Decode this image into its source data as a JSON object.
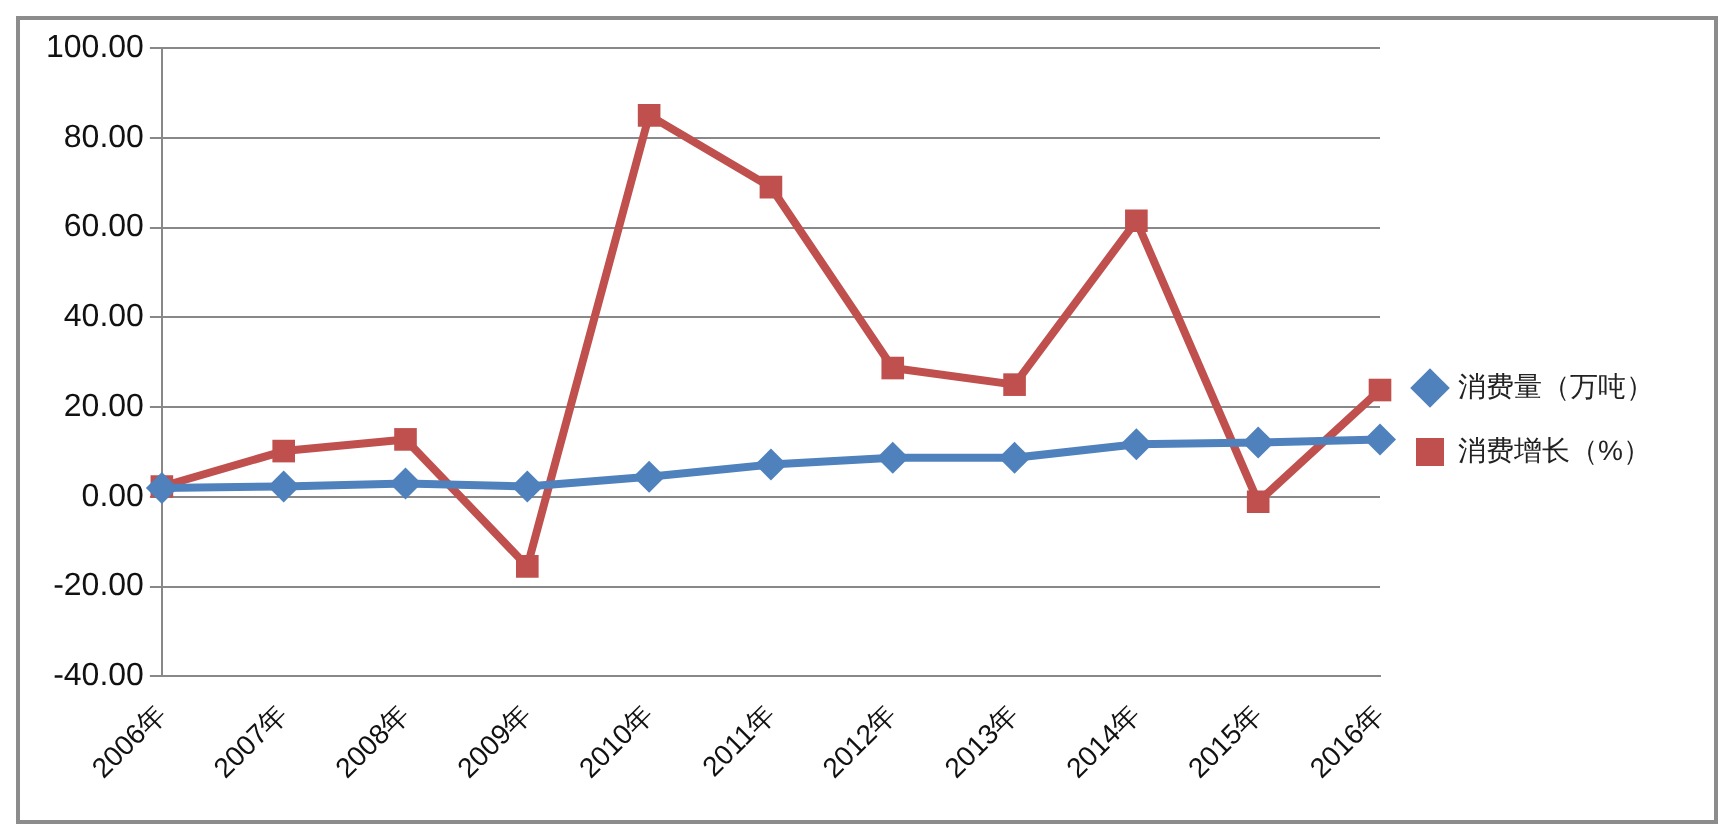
{
  "chart_data": {
    "type": "line",
    "categories": [
      "2006年",
      "2007年",
      "2008年",
      "2009年",
      "2010年",
      "2011年",
      "2012年",
      "2013年",
      "2014年",
      "2015年",
      "2016年"
    ],
    "series": [
      {
        "name": "消费增长（%）",
        "color": "#c0504d",
        "marker": "square",
        "values": [
          2.3,
          10.2,
          12.8,
          -15.5,
          85,
          69,
          28.7,
          25,
          61.5,
          -1.1,
          23.8
        ]
      },
      {
        "name": "消费量（万吨）",
        "color": "#4f81bd",
        "marker": "diamond",
        "values": [
          2.0,
          2.3,
          3.0,
          2.3,
          4.5,
          7.2,
          8.7,
          8.7,
          11.7,
          12.1,
          12.8
        ]
      }
    ],
    "ylim": [
      -40,
      100
    ],
    "yticks": [
      {
        "value": -40,
        "label": "-40.00"
      },
      {
        "value": -20,
        "label": "-20.00"
      },
      {
        "value": 0,
        "label": "0.00"
      },
      {
        "value": 20,
        "label": "20.00"
      },
      {
        "value": 40,
        "label": "40.00"
      },
      {
        "value": 60,
        "label": "60.00"
      },
      {
        "value": 80,
        "label": "80.00"
      },
      {
        "value": 100,
        "label": "100.00"
      }
    ],
    "grid": "y",
    "legend": "right",
    "line_style": "solid"
  }
}
